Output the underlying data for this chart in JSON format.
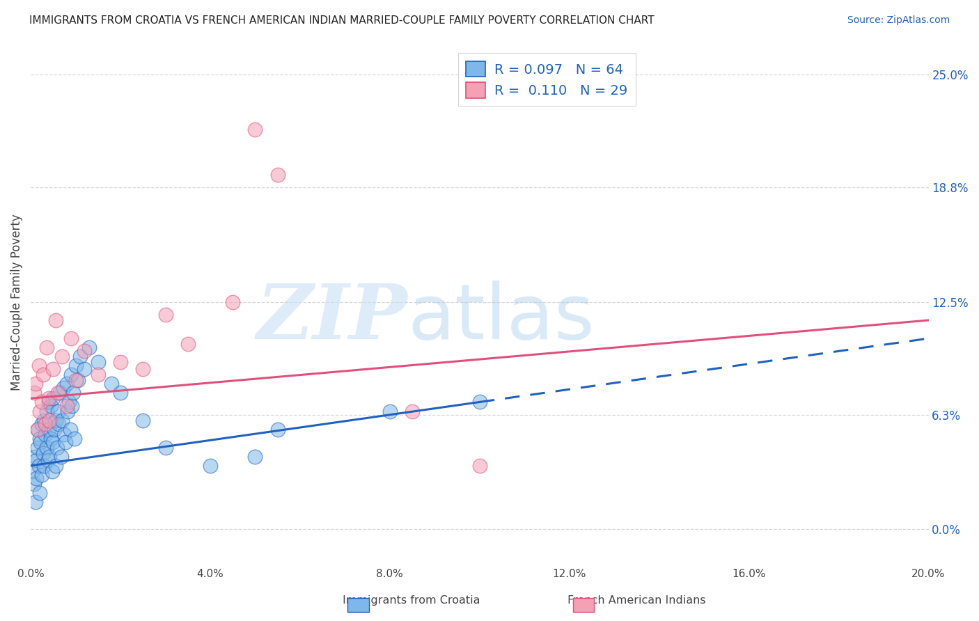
{
  "title": "IMMIGRANTS FROM CROATIA VS FRENCH AMERICAN INDIAN MARRIED-COUPLE FAMILY POVERTY CORRELATION CHART",
  "source": "Source: ZipAtlas.com",
  "ylabel": "Married-Couple Family Poverty",
  "right_tick_labels": [
    "0.0%",
    "6.3%",
    "12.5%",
    "18.8%",
    "25.0%"
  ],
  "right_tick_values": [
    0.0,
    6.3,
    12.5,
    18.8,
    25.0
  ],
  "xmin": 0.0,
  "xmax": 20.0,
  "ymin": -2.0,
  "ymax": 27.0,
  "legend_label1": "Immigrants from Croatia",
  "legend_label2": "French American Indians",
  "legend_r1": "0.097",
  "legend_n1": "64",
  "legend_r2": "0.110",
  "legend_n2": "29",
  "color_blue": "#7fb8e8",
  "color_pink": "#f4a0b5",
  "color_blue_line": "#2060c0",
  "color_pink_line": "#e0507a",
  "watermark_zip": "ZIP",
  "watermark_atlas": "atlas",
  "grid_color": "#d8d8d8",
  "background_color": "#ffffff",
  "blue_line_x0": 0.0,
  "blue_line_y0": 3.5,
  "blue_line_x1": 10.0,
  "blue_line_y1": 7.0,
  "blue_dash_x0": 10.0,
  "blue_dash_y0": 7.0,
  "blue_dash_x1": 20.0,
  "blue_dash_y1": 10.5,
  "pink_line_x0": 0.0,
  "pink_line_y0": 7.2,
  "pink_line_x1": 20.0,
  "pink_line_y1": 11.5,
  "blue_scatter_x": [
    0.05,
    0.08,
    0.1,
    0.1,
    0.12,
    0.13,
    0.15,
    0.15,
    0.18,
    0.2,
    0.2,
    0.22,
    0.25,
    0.25,
    0.28,
    0.3,
    0.3,
    0.32,
    0.35,
    0.35,
    0.38,
    0.4,
    0.4,
    0.42,
    0.45,
    0.45,
    0.48,
    0.5,
    0.5,
    0.52,
    0.55,
    0.55,
    0.58,
    0.6,
    0.62,
    0.65,
    0.68,
    0.7,
    0.72,
    0.75,
    0.78,
    0.8,
    0.82,
    0.85,
    0.88,
    0.9,
    0.92,
    0.95,
    0.98,
    1.0,
    1.05,
    1.1,
    1.2,
    1.3,
    1.5,
    1.8,
    2.0,
    2.5,
    3.0,
    4.0,
    5.0,
    5.5,
    8.0,
    10.0
  ],
  "blue_scatter_y": [
    3.2,
    2.5,
    1.5,
    4.0,
    3.8,
    2.8,
    4.5,
    5.5,
    3.5,
    2.0,
    5.0,
    4.8,
    3.0,
    5.8,
    4.2,
    3.5,
    6.0,
    5.2,
    4.5,
    6.5,
    3.8,
    5.5,
    7.0,
    4.0,
    5.0,
    6.8,
    3.2,
    4.8,
    7.2,
    5.5,
    6.0,
    3.5,
    4.5,
    6.5,
    5.8,
    7.5,
    4.0,
    6.0,
    7.8,
    5.2,
    4.8,
    8.0,
    6.5,
    7.0,
    5.5,
    8.5,
    6.8,
    7.5,
    5.0,
    9.0,
    8.2,
    9.5,
    8.8,
    10.0,
    9.2,
    8.0,
    7.5,
    6.0,
    4.5,
    3.5,
    4.0,
    5.5,
    6.5,
    7.0
  ],
  "pink_scatter_x": [
    0.08,
    0.1,
    0.15,
    0.18,
    0.2,
    0.25,
    0.28,
    0.32,
    0.35,
    0.4,
    0.42,
    0.5,
    0.55,
    0.6,
    0.7,
    0.8,
    0.9,
    1.0,
    1.2,
    1.5,
    2.0,
    2.5,
    3.0,
    3.5,
    4.5,
    5.0,
    5.5,
    8.5,
    10.0
  ],
  "pink_scatter_y": [
    7.5,
    8.0,
    5.5,
    9.0,
    6.5,
    7.0,
    8.5,
    5.8,
    10.0,
    7.2,
    6.0,
    8.8,
    11.5,
    7.5,
    9.5,
    6.8,
    10.5,
    8.2,
    9.8,
    8.5,
    9.2,
    8.8,
    11.8,
    10.2,
    12.5,
    22.0,
    19.5,
    6.5,
    3.5
  ]
}
